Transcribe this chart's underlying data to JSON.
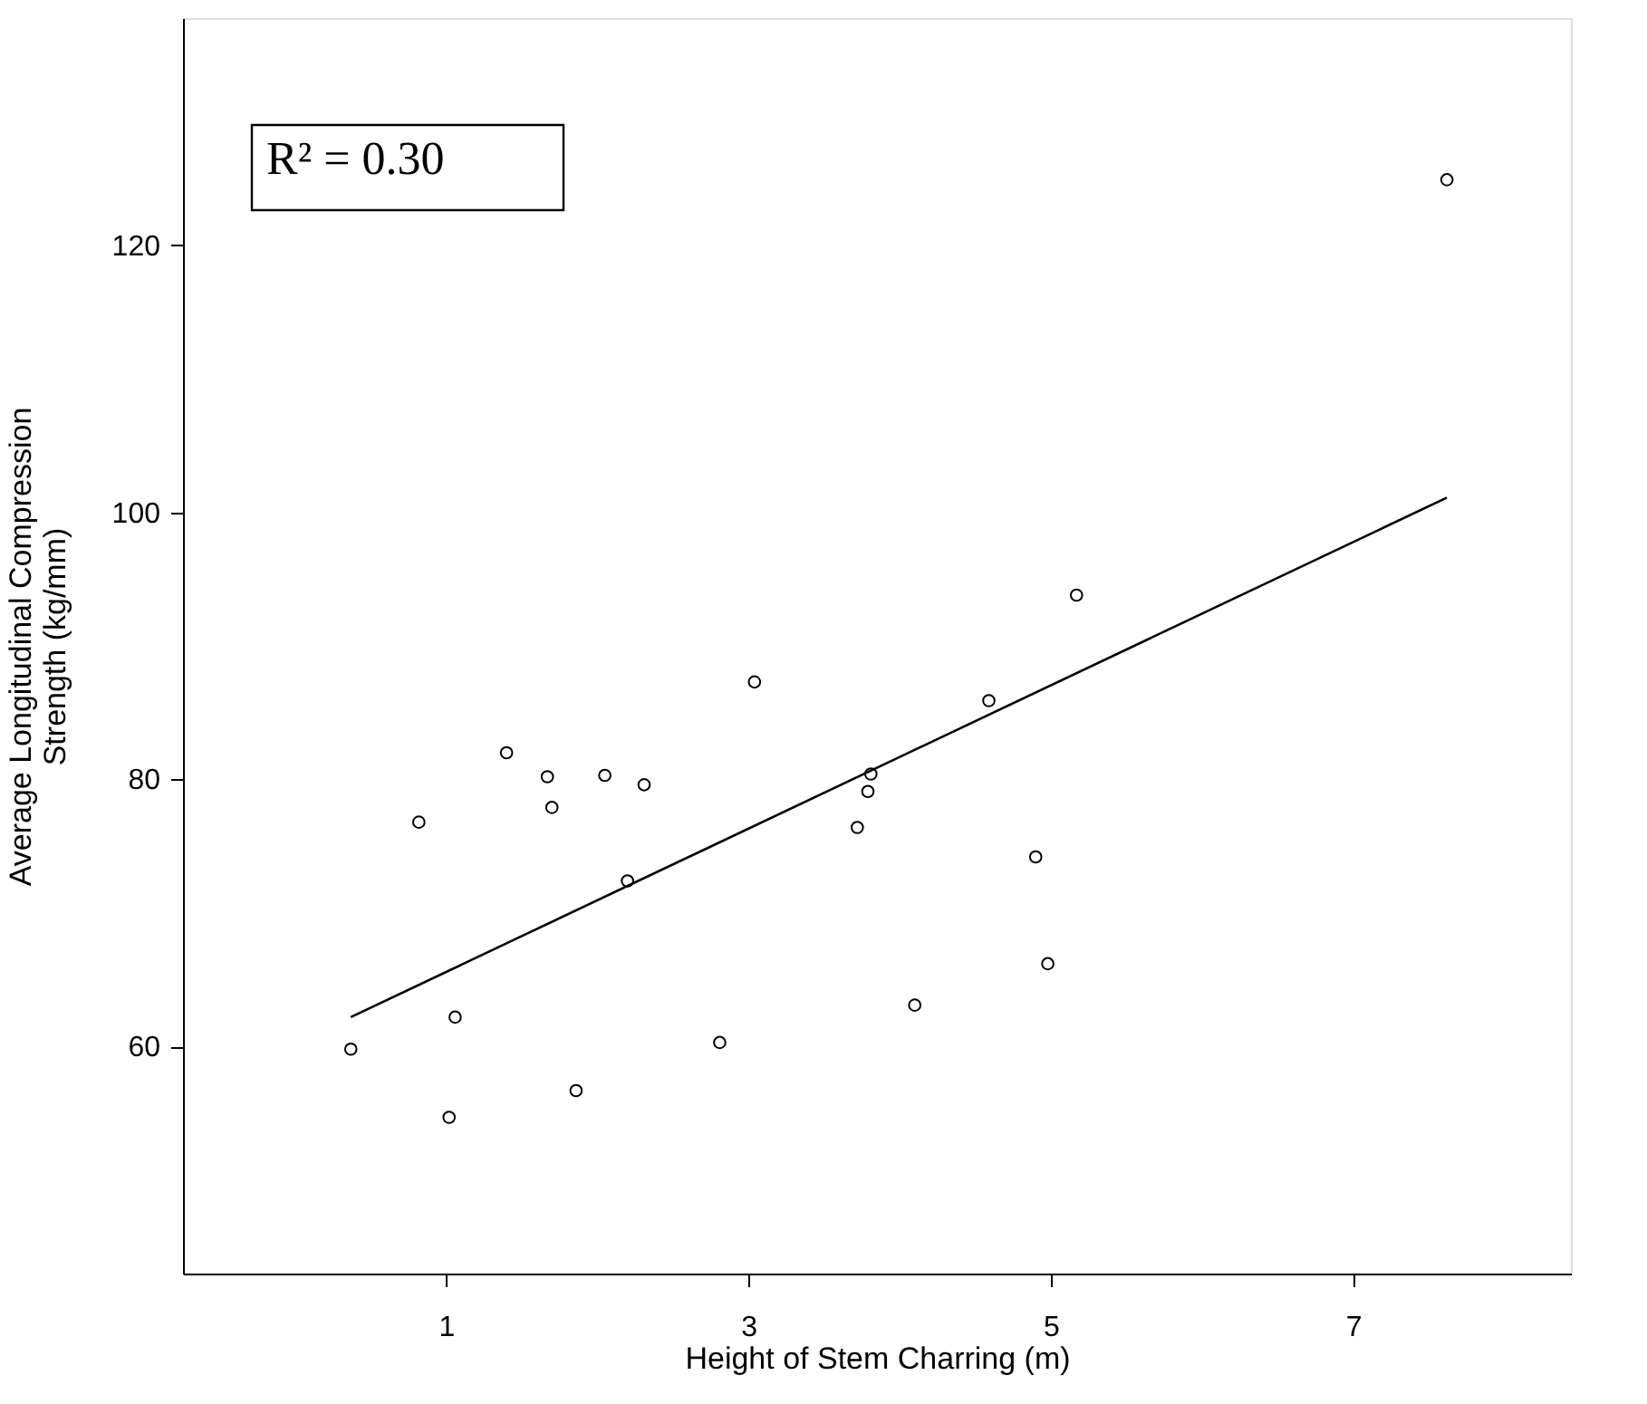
{
  "chart_data": {
    "type": "scatter",
    "xlabel": "Height of Stem Charring (m)",
    "ylabel": "Average Longitudinal Compression\nStrength (kg/mm)",
    "xlim": [
      -0.74,
      8.44
    ],
    "ylim": [
      43,
      137
    ],
    "xticks": [
      1,
      3,
      5,
      7
    ],
    "yticks": [
      60,
      80,
      100,
      120
    ],
    "grid": false,
    "marker": "circle",
    "annotations": [
      "R² = 0.30"
    ],
    "series": [
      {
        "color": "#000000",
        "x": [
          0.37,
          0.82,
          1.02,
          1.06,
          1.4,
          1.67,
          1.7,
          1.86,
          2.05,
          2.2,
          2.31,
          2.81,
          3.04,
          3.72,
          3.79,
          3.81,
          4.1,
          4.59,
          4.9,
          4.98,
          5.17,
          7.62
        ],
        "values": [
          59.8,
          76.8,
          54.7,
          62.2,
          82.0,
          80.2,
          77.9,
          56.7,
          80.3,
          72.4,
          79.6,
          60.3,
          87.3,
          76.4,
          79.1,
          80.4,
          63.1,
          85.9,
          74.2,
          66.2,
          93.8,
          124.9
        ]
      },
      {
        "type": "line",
        "color": "#000000",
        "line_style": "solid",
        "marker": "none",
        "x": [
          0.37,
          7.62
        ],
        "values": [
          62.2,
          101.1
        ]
      }
    ]
  }
}
